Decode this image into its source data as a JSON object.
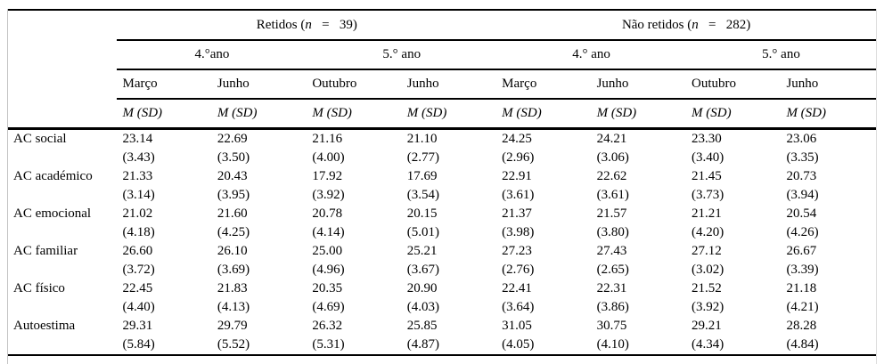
{
  "table": {
    "groups": [
      {
        "prefix": "Retidos (",
        "n_symbol": "n",
        "suffix": "   =   39)"
      },
      {
        "prefix": "Não retidos (",
        "n_symbol": "n",
        "suffix": "   =   282)"
      }
    ],
    "year_headers": [
      "4.°ano",
      "5.° ano",
      "4.° ano",
      "5.° ano"
    ],
    "month_headers": [
      "Março",
      "Junho",
      "Outubro",
      "Junho",
      "Março",
      "Junho",
      "Outubro",
      "Junho"
    ],
    "stat_header": "M (SD)",
    "rows": [
      {
        "label": "AC social",
        "m": [
          "23.14",
          "22.69",
          "21.16",
          "21.10",
          "24.25",
          "24.21",
          "23.30",
          "23.06"
        ],
        "sd": [
          "(3.43)",
          "(3.50)",
          "(4.00)",
          "(2.77)",
          "(2.96)",
          "(3.06)",
          "(3.40)",
          "(3.35)"
        ]
      },
      {
        "label": "AC académico",
        "m": [
          "21.33",
          "20.43",
          "17.92",
          "17.69",
          "22.91",
          "22.62",
          "21.45",
          "20.73"
        ],
        "sd": [
          "(3.14)",
          "(3.95)",
          "(3.92)",
          "(3.54)",
          "(3.61)",
          "(3.61)",
          "(3.73)",
          "(3.94)"
        ]
      },
      {
        "label": "AC emocional",
        "m": [
          "21.02",
          "21.60",
          "20.78",
          "20.15",
          "21.37",
          "21.57",
          "21.21",
          "20.54"
        ],
        "sd": [
          "(4.18)",
          "(4.25)",
          "(4.14)",
          "(5.01)",
          "(3.98)",
          "(3.80)",
          "(4.20)",
          "(4.26)"
        ]
      },
      {
        "label": "AC familiar",
        "m": [
          "26.60",
          "26.10",
          "25.00",
          "25.21",
          "27.23",
          "27.43",
          "27.12",
          "26.67"
        ],
        "sd": [
          "(3.72)",
          "(3.69)",
          "(4.96)",
          "(3.67)",
          "(2.76)",
          "(2.65)",
          "(3.02)",
          "(3.39)"
        ]
      },
      {
        "label": "AC físico",
        "m": [
          "22.45",
          "21.83",
          "20.35",
          "20.90",
          "22.41",
          "22.31",
          "21.52",
          "21.18"
        ],
        "sd": [
          "(4.40)",
          "(4.13)",
          "(4.69)",
          "(4.03)",
          "(3.64)",
          "(3.86)",
          "(3.92)",
          "(4.21)"
        ]
      },
      {
        "label": "Autoestima",
        "m": [
          "29.31",
          "29.79",
          "26.32",
          "25.85",
          "31.05",
          "30.75",
          "29.21",
          "28.28"
        ],
        "sd": [
          "(5.84)",
          "(5.52)",
          "(5.31)",
          "(4.87)",
          "(4.05)",
          "(4.10)",
          "(4.34)",
          "(4.84)"
        ]
      }
    ]
  }
}
